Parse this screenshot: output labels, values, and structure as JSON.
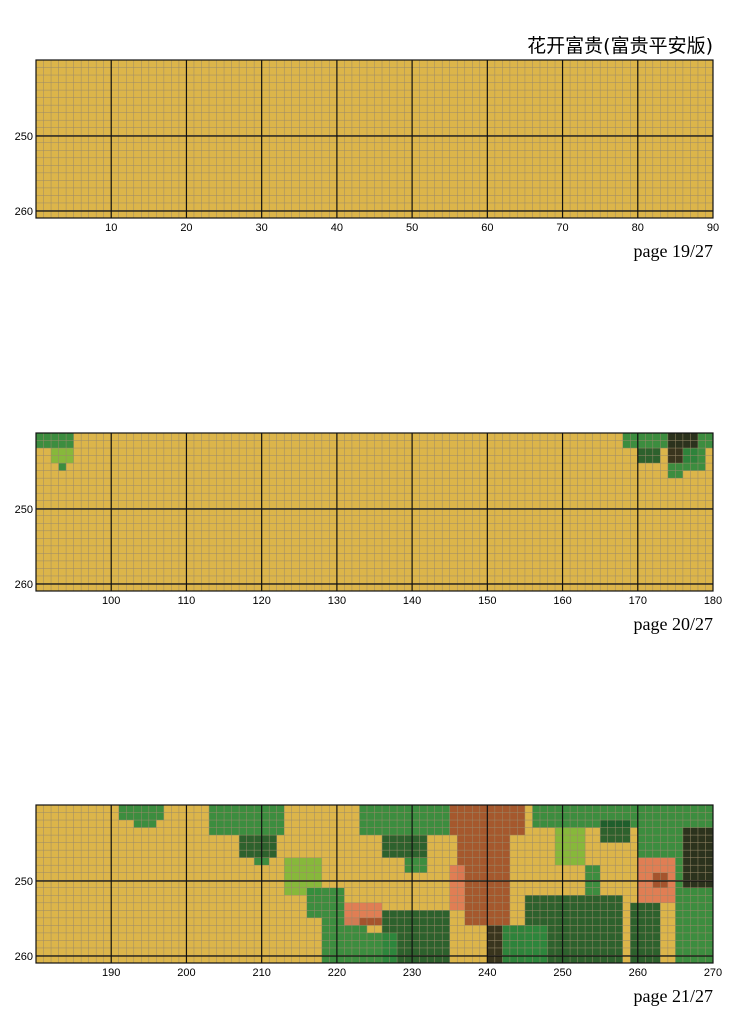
{
  "title": "花开富贵(富贵平安版)",
  "pages": [
    {
      "xticks": [
        10,
        20,
        30,
        40,
        50,
        60,
        70,
        80,
        90
      ],
      "yticks": [
        250,
        260
      ],
      "page_label": "page 19/27"
    },
    {
      "xticks": [
        100,
        110,
        120,
        130,
        140,
        150,
        160,
        170,
        180
      ],
      "yticks": [
        250,
        260
      ],
      "page_label": "page 20/27"
    },
    {
      "xticks": [
        190,
        200,
        210,
        220,
        230,
        240,
        250,
        260,
        270
      ],
      "yticks": [
        250,
        260
      ],
      "page_label": "page 21/27"
    }
  ]
}
